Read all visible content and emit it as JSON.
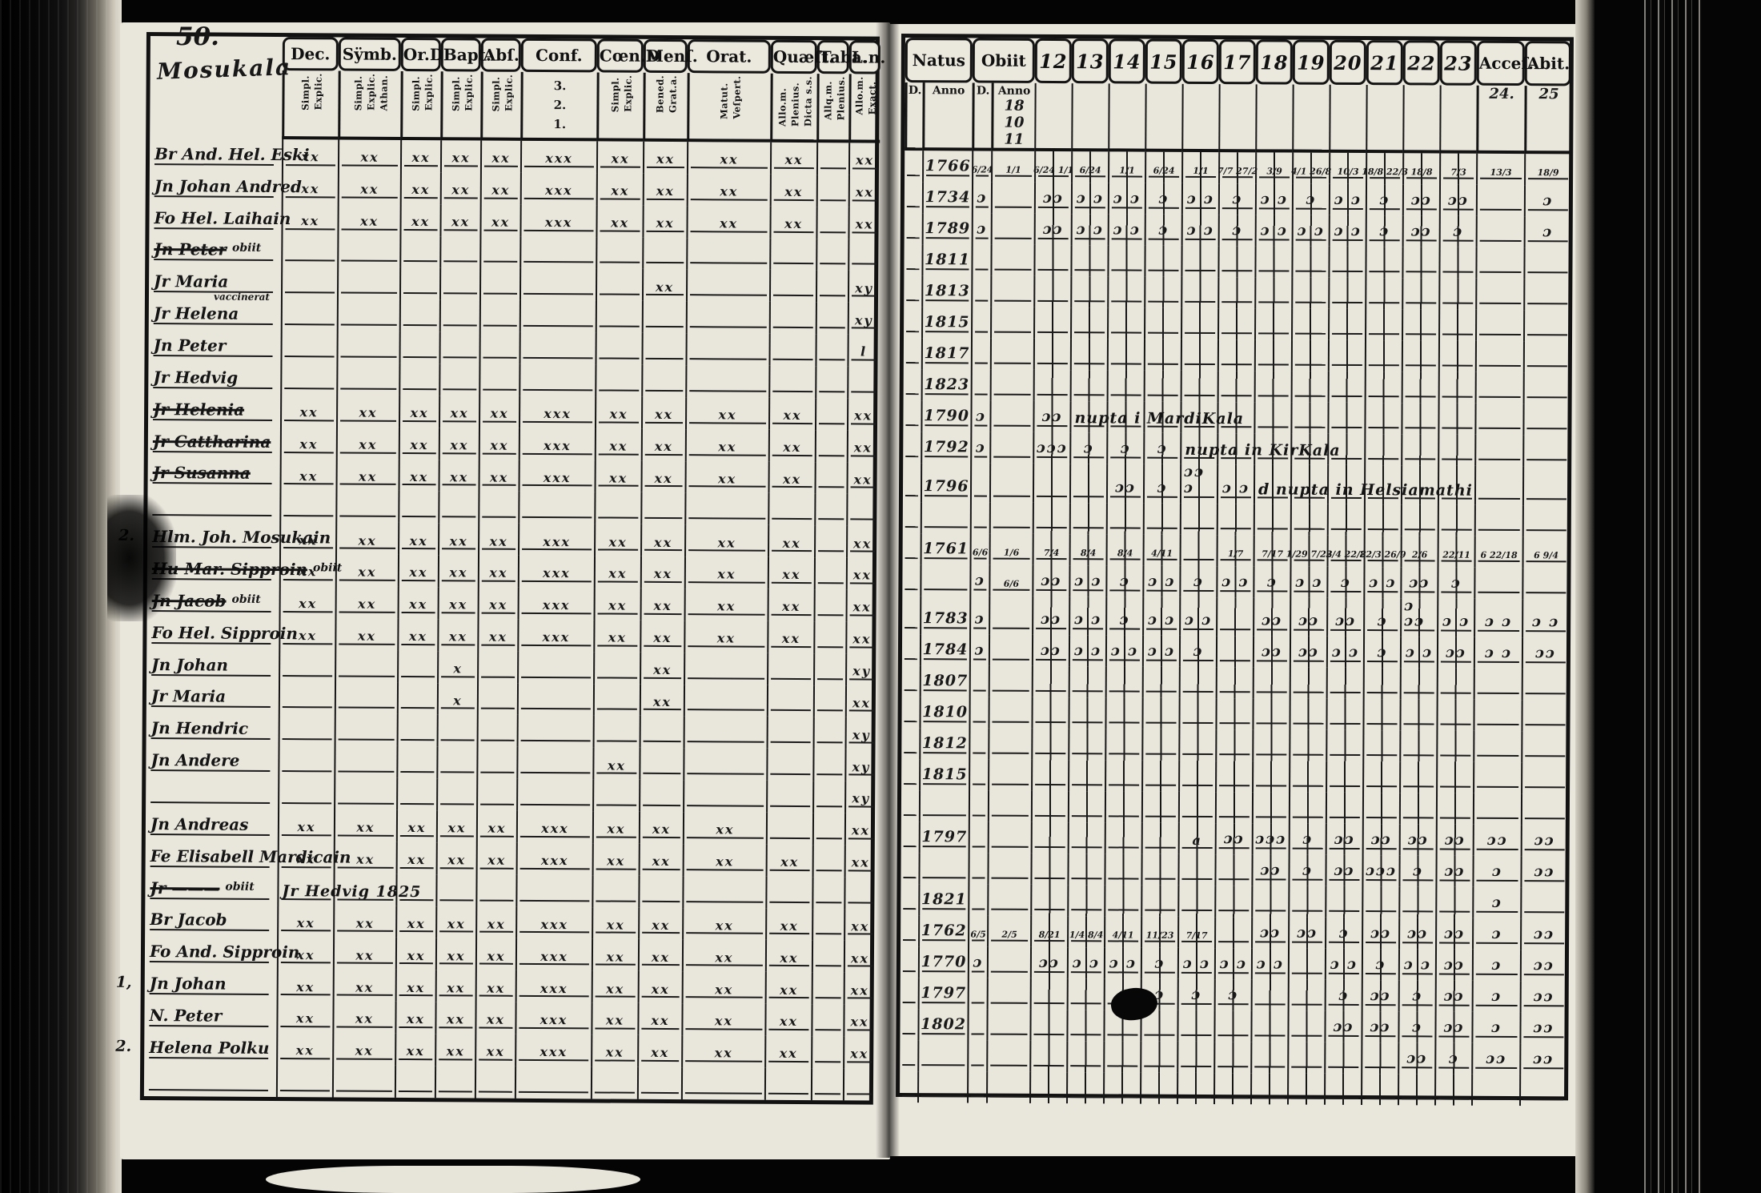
{
  "scan": {
    "page_number": "50.",
    "village_title": "Mosukala"
  },
  "left_table": {
    "columns": [
      {
        "label": "Dec.",
        "subs": [
          "Simpl.",
          "Explic."
        ]
      },
      {
        "label": "Sÿmb.",
        "subs": [
          "Simpl.",
          "Explic.",
          "Athan."
        ]
      },
      {
        "label": "Or.D",
        "subs": [
          "Simpl.",
          "Explic."
        ]
      },
      {
        "label": "Bapt.",
        "subs": [
          "Simpl.",
          "Explic."
        ]
      },
      {
        "label": "Abſ.",
        "subs": [
          "Simpl.",
          "Explic."
        ]
      },
      {
        "label": "Conf.",
        "subs": [
          "3.",
          "2.",
          "1."
        ],
        "stacked": true
      },
      {
        "label": "Cœn.D",
        "subs": [
          "Simpl.",
          "Explic."
        ]
      },
      {
        "label": "Menſ.",
        "subs": [
          "Bened.",
          "Grat.a."
        ]
      },
      {
        "label": "Orat.",
        "subs": [
          "Matut.",
          "Veſpert."
        ]
      },
      {
        "label": "Quæſt.",
        "subs": [
          "Allo.m.",
          "Plenius.",
          "Dicta s.s."
        ]
      },
      {
        "label": "Taba.",
        "subs": [
          "Allq.m.",
          "Plenius."
        ]
      },
      {
        "label": "L.n.",
        "subs": [
          "Allo.m.",
          "Exact."
        ]
      }
    ],
    "rows": [
      {
        "name": "Br And. Hel. Eski",
        "marks": [
          "xx",
          "xx",
          "xx",
          "xx",
          "xx",
          "xxx",
          "xx",
          "xx",
          "xx",
          "xx",
          "",
          "xx"
        ]
      },
      {
        "name": "Jn Johan Andred",
        "marks": [
          "xx",
          "xx",
          "xx",
          "xx",
          "xx",
          "xxx",
          "xx",
          "xx",
          "xx",
          "xx",
          "",
          "xx"
        ]
      },
      {
        "name": "Fo Hel. Laihain",
        "marks": [
          "xx",
          "xx",
          "xx",
          "xx",
          "xx",
          "xxx",
          "xx",
          "xx",
          "xx",
          "xx",
          "",
          "xx"
        ]
      },
      {
        "name": "Jn Peter",
        "crossed": true,
        "sup": "obiit",
        "marks": [
          "",
          "",
          "",
          "",
          "",
          "",
          "",
          "",
          "",
          "",
          "",
          ""
        ]
      },
      {
        "name": "Jr Maria",
        "marks": [
          "",
          "",
          "",
          "",
          "",
          "",
          "",
          "xx",
          "",
          "",
          "",
          "xy"
        ]
      },
      {
        "name": "Jr Helena",
        "sup": "vaccinerat",
        "sup_above": true,
        "marks": [
          "",
          "",
          "",
          "",
          "",
          "",
          "",
          "",
          "",
          "",
          "",
          "xy"
        ]
      },
      {
        "name": "Jn Peter",
        "marks": [
          "",
          "",
          "",
          "",
          "",
          "",
          "",
          "",
          "",
          "",
          "",
          "l"
        ]
      },
      {
        "name": "Jr Hedvig",
        "marks": [
          "",
          "",
          "",
          "",
          "",
          "",
          "",
          "",
          "",
          "",
          "",
          ""
        ]
      },
      {
        "name": "Jr Helenia",
        "crossed": true,
        "marks": [
          "xx",
          "xx",
          "xx",
          "xx",
          "xx",
          "xxx",
          "xx",
          "xx",
          "xx",
          "xx",
          "",
          "xx"
        ]
      },
      {
        "name": "Jr Cattharina",
        "crossed": true,
        "marks": [
          "xx",
          "xx",
          "xx",
          "xx",
          "xx",
          "xxx",
          "xx",
          "xx",
          "xx",
          "xx",
          "",
          "xx"
        ]
      },
      {
        "name": "Jr Susanna",
        "crossed": true,
        "marks": [
          "xx",
          "xx",
          "xx",
          "xx",
          "xx",
          "xxx",
          "xx",
          "xx",
          "xx",
          "xx",
          "",
          "xx"
        ]
      },
      {
        "name": "",
        "marks": [
          "",
          "",
          "",
          "",
          "",
          "",
          "",
          "",
          "",
          "",
          "",
          ""
        ]
      },
      {
        "margin": "2.",
        "name": "Hlm. Joh. Mosukain",
        "marks": [
          "xx",
          "xx",
          "xx",
          "xx",
          "xx",
          "xxx",
          "xx",
          "xx",
          "xx",
          "xx",
          "",
          "xx"
        ]
      },
      {
        "name": "Hu Mar. Sipproin",
        "crossed": true,
        "sup": "obiit",
        "marks": [
          "xx",
          "xx",
          "xx",
          "xx",
          "xx",
          "xxx",
          "xx",
          "xx",
          "xx",
          "xx",
          "",
          "xx"
        ]
      },
      {
        "name": "Jn Jacob",
        "crossed": true,
        "sup": "obiit",
        "marks": [
          "xx",
          "xx",
          "xx",
          "xx",
          "xx",
          "xxx",
          "xx",
          "xx",
          "xx",
          "xx",
          "",
          "xx"
        ]
      },
      {
        "name": "Fo Hel. Sipproin",
        "marks": [
          "xx",
          "xx",
          "xx",
          "xx",
          "xx",
          "xxx",
          "xx",
          "xx",
          "xx",
          "xx",
          "",
          "xx"
        ]
      },
      {
        "name": "Jn Johan",
        "marks": [
          "",
          "",
          "",
          "x",
          "",
          "",
          "",
          "xx",
          "",
          "",
          "",
          "xy"
        ]
      },
      {
        "name": "Jr Maria",
        "marks": [
          "",
          "",
          "",
          "x",
          "",
          "",
          "",
          "xx",
          "",
          "",
          "",
          "xx"
        ]
      },
      {
        "name": "Jn Hendric",
        "marks": [
          "",
          "",
          "",
          "",
          "",
          "",
          "",
          "",
          "",
          "",
          "",
          "xy"
        ]
      },
      {
        "name": "Jn Andere",
        "marks": [
          "",
          "",
          "",
          "",
          "",
          "",
          "xx",
          "",
          "",
          "",
          "",
          "xy"
        ]
      },
      {
        "name": "",
        "marks": [
          "",
          "",
          "",
          "",
          "",
          "",
          "",
          "",
          "",
          "",
          "",
          "xy"
        ]
      },
      {
        "name": "Jn Andreas",
        "marks": [
          "xx",
          "xx",
          "xx",
          "xx",
          "xx",
          "xxx",
          "xx",
          "xx",
          "xx",
          "",
          "",
          "xx"
        ]
      },
      {
        "name": "Fe Elisabell Mardicain",
        "marks": [
          "xx",
          "xx",
          "xx",
          "xx",
          "xx",
          "xxx",
          "xx",
          "xx",
          "xx",
          "xx",
          "",
          "xx"
        ]
      },
      {
        "name": "Jr ———",
        "crossed": true,
        "sup": "obiit",
        "note": {
          "text": "Jr Hedvig 1825",
          "col": 0
        },
        "marks": [
          "",
          "",
          "",
          "",
          "",
          "",
          "",
          "",
          "",
          "",
          "",
          ""
        ]
      },
      {
        "name": "Br Jacob",
        "marks": [
          "xx",
          "xx",
          "xx",
          "xx",
          "xx",
          "xxx",
          "xx",
          "xx",
          "xx",
          "xx",
          "",
          "xx"
        ]
      },
      {
        "name": "Fo And. Sipproin",
        "marks": [
          "xx",
          "xx",
          "xx",
          "xx",
          "xx",
          "xxx",
          "xx",
          "xx",
          "xx",
          "xx",
          "",
          "xx"
        ]
      },
      {
        "margin": "1,",
        "name": "Jn Johan",
        "marks": [
          "xx",
          "xx",
          "xx",
          "xx",
          "xx",
          "xxx",
          "xx",
          "xx",
          "xx",
          "xx",
          "",
          "xx"
        ]
      },
      {
        "name": "N. Peter",
        "marks": [
          "xx",
          "xx",
          "xx",
          "xx",
          "xx",
          "xxx",
          "xx",
          "xx",
          "xx",
          "xx",
          "",
          "xx"
        ]
      },
      {
        "margin": "2.",
        "name": "Helena Polku",
        "marks": [
          "xx",
          "xx",
          "xx",
          "xx",
          "xx",
          "xxx",
          "xx",
          "xx",
          "xx",
          "xx",
          "",
          "xx"
        ]
      },
      {
        "name": "",
        "marks": [
          "",
          "",
          "",
          "",
          "",
          "",
          "",
          "",
          "",
          "",
          "",
          ""
        ]
      }
    ]
  },
  "right_table": {
    "natus_label": "Natus",
    "obiit_label": "Obiit",
    "d_label": "D.",
    "anno_label": "Anno",
    "obiit_header_note": "18 10 11",
    "years": [
      "12",
      "13",
      "14",
      "15",
      "16",
      "17",
      "18",
      "19",
      "20",
      "21",
      "22",
      "23"
    ],
    "acces_label": "Acceſ.",
    "acces_note": "24.",
    "abiit_label": "Abit.",
    "abiit_note": "25",
    "rows": [
      {
        "anno": "1766",
        "od": "6/24",
        "oa": "1/1",
        "y": [
          "6/24 1/1",
          "6/24",
          "1/1",
          "6/24",
          "1/1",
          "7/7 27/2",
          "3/9",
          "4/1 26/8",
          "10/3",
          "18/8 22/3",
          "18/8",
          "7/3"
        ],
        "ac": "13/3",
        "ab": "18/9"
      },
      {
        "anno": "1734",
        "od": "ɔ",
        "y": [
          "ɔɔ",
          "ɔ ɔ",
          "ɔ ɔ",
          "ɔ",
          "ɔ ɔ",
          "ɔ",
          "ɔ ɔ",
          "ɔ",
          "ɔ ɔ",
          "ɔ",
          "ɔɔ",
          "ɔɔ"
        ],
        "ab": "ɔ"
      },
      {
        "anno": "1789",
        "od": "ɔ",
        "y": [
          "ɔɔ",
          "ɔ ɔ",
          "ɔ ɔ",
          "ɔ",
          "ɔ ɔ",
          "ɔ",
          "ɔ ɔ",
          "ɔ ɔ",
          "ɔ ɔ",
          "ɔ",
          "ɔɔ",
          "ɔ"
        ],
        "ab": "ɔ"
      },
      {
        "anno": "1811"
      },
      {
        "anno": "1813"
      },
      {
        "anno": "1815"
      },
      {
        "anno": "1817"
      },
      {
        "anno": "1823"
      },
      {
        "anno": "1790",
        "od": "ɔ",
        "y": [
          "ɔɔ",
          "",
          "",
          "",
          "",
          "",
          "",
          "",
          "",
          "",
          "",
          ""
        ],
        "note": {
          "text": "nupta i MardiKala",
          "col": 1
        }
      },
      {
        "anno": "1792",
        "od": "ɔ",
        "y": [
          "ɔɔɔ",
          "ɔ",
          "ɔ",
          "ɔ",
          "",
          "",
          "",
          "",
          "",
          "",
          "",
          ""
        ],
        "note": {
          "text": "nupta in KirKala",
          "col": 4
        }
      },
      {
        "anno": "1796",
        "y": [
          "",
          "",
          "ɔɔ",
          "ɔ",
          "ɔɔ ɔ",
          "ɔ ɔ",
          "",
          "",
          "",
          "",
          "",
          ""
        ],
        "note": {
          "text": "d nupta in Helsiamathi",
          "col": 6
        }
      },
      {},
      {
        "anno": "1761",
        "od": "6/6",
        "oa": "1/6",
        "y": [
          "7/4",
          "8/4",
          "8/4",
          "4/11",
          "",
          "1/7",
          "7/17",
          "1/29 7/23",
          "2/4 22/8",
          "22/3 26/9",
          "2/6",
          "22/11"
        ],
        "ac": "6 22/18",
        "ab": "6 9/4"
      },
      {
        "od": "ɔ",
        "oa": "6/6",
        "y": [
          "ɔɔ",
          "ɔ ɔ",
          "ɔ",
          "ɔ ɔ",
          "ɔ",
          "ɔ ɔ",
          "ɔ",
          "ɔ ɔ",
          "ɔ",
          "ɔ ɔ",
          "ɔɔ",
          "ɔ"
        ]
      },
      {
        "anno": "1783",
        "od": "ɔ",
        "y": [
          "ɔɔ",
          "ɔ ɔ",
          "ɔ",
          "ɔ ɔ",
          "ɔ ɔ",
          "",
          "ɔɔ",
          "ɔɔ",
          "ɔɔ",
          "ɔ",
          "ɔ ɔɔ",
          "ɔ ɔ"
        ],
        "ac": "ɔ ɔ",
        "ab": "ɔ ɔ"
      },
      {
        "anno": "1784",
        "od": "ɔ",
        "y": [
          "ɔɔ",
          "ɔ ɔ",
          "ɔ ɔ",
          "ɔ ɔ",
          "ɔ",
          "",
          "ɔɔ",
          "ɔɔ",
          "ɔ ɔ",
          "ɔ",
          "ɔ ɔ",
          "ɔɔ"
        ],
        "ac": "ɔ ɔ",
        "ab": "ɔɔ"
      },
      {
        "anno": "1807"
      },
      {
        "anno": "1810"
      },
      {
        "anno": "1812"
      },
      {
        "anno": "1815"
      },
      {},
      {
        "anno": "1797",
        "y": [
          "",
          "",
          "",
          "",
          "a",
          "ɔɔ",
          "ɔɔɔ",
          "ɔ",
          "ɔɔ",
          "ɔɔ",
          "ɔɔ",
          "ɔɔ"
        ],
        "ac": "ɔɔ",
        "ab": "ɔɔ"
      },
      {
        "y": [
          "",
          "",
          "",
          "",
          "",
          "",
          "ɔɔ",
          "ɔ",
          "ɔɔ",
          "ɔɔɔ",
          "ɔ",
          "ɔɔ"
        ],
        "ac": "ɔ",
        "ab": "ɔɔ"
      },
      {
        "anno": "1821",
        "ac": "ɔ"
      },
      {
        "anno": "1762",
        "od": "6/5",
        "oa": "2/5",
        "y": [
          "8/21",
          "1/4 8/4",
          "4/11",
          "11/23",
          "7/17",
          "",
          "ɔɔ",
          "ɔɔ",
          "ɔ",
          "ɔɔ",
          "ɔɔ",
          "ɔɔ"
        ],
        "ac": "ɔ",
        "ab": "ɔɔ"
      },
      {
        "anno": "1770",
        "od": "ɔ",
        "y": [
          "ɔɔ",
          "ɔ ɔ",
          "ɔ ɔ",
          "ɔ",
          "ɔ ɔ",
          "ɔ ɔ",
          "ɔ ɔ",
          "",
          "ɔ ɔ",
          "ɔ",
          "ɔ ɔ",
          "ɔɔ"
        ],
        "ac": "ɔ",
        "ab": "ɔɔ"
      },
      {
        "anno": "1797",
        "y": [
          "",
          "",
          "ɔ",
          "ɔ",
          "ɔ",
          "ɔ",
          "",
          "",
          "ɔ",
          "ɔɔ",
          "ɔ",
          "ɔɔ"
        ],
        "ac": "ɔ",
        "ab": "ɔɔ"
      },
      {
        "anno": "1802",
        "y": [
          "",
          "",
          "",
          "",
          "",
          "",
          "",
          "",
          "ɔɔ",
          "ɔɔ",
          "ɔ",
          "ɔɔ"
        ],
        "ac": "ɔ",
        "ab": "ɔɔ"
      },
      {
        "y": [
          "",
          "",
          "",
          "",
          "",
          "",
          "",
          "",
          "",
          "",
          "ɔɔ",
          "ɔ"
        ],
        "ac": "ɔɔ",
        "ab": "ɔɔ"
      },
      {}
    ]
  }
}
